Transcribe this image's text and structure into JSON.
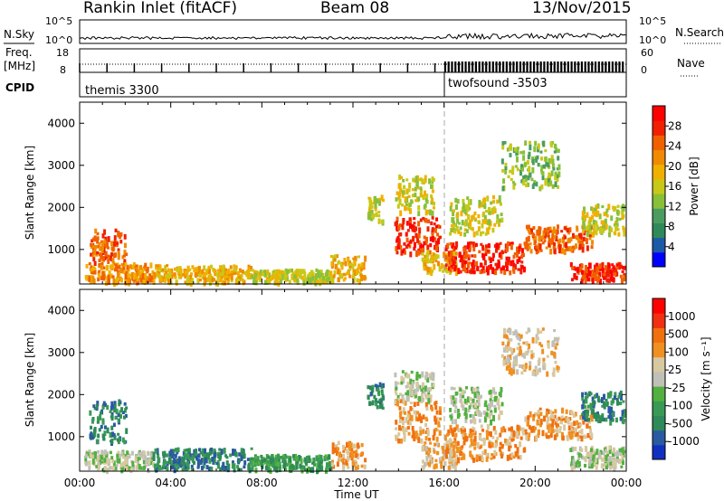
{
  "header": {
    "station": "Rankin Inlet (fitACF)",
    "beam": "Beam 08",
    "date": "13/Nov/2015"
  },
  "strips": {
    "nsky_label": "N.Sky",
    "nsearch_label": "N.Search",
    "noise_ticks": [
      "10^5",
      "10^0"
    ],
    "freq_label": "Freq.",
    "freq_unit": "[MHz]",
    "freq_ticks": [
      "18",
      "8"
    ],
    "nave_label": "Nave",
    "nave_ticks": [
      "60",
      "0"
    ],
    "cpid_label": "CPID",
    "cpid_segments": [
      {
        "name": "themis 3300",
        "start_hour": 0,
        "end_hour": 16
      },
      {
        "name": "twofsound -3503",
        "start_hour": 16,
        "end_hour": 24
      }
    ]
  },
  "chart_data": [
    {
      "type": "heatmap",
      "name": "power",
      "ylabel": "Slant Range [km]",
      "x_unit": "hours UT",
      "xlim": [
        0,
        24
      ],
      "ylim": [
        180,
        4500
      ],
      "yticks": [
        1000,
        2000,
        3000,
        4000
      ],
      "colorbar": {
        "label": "Power [dB]",
        "ticks": [
          "4",
          "8",
          "12",
          "16",
          "20",
          "24",
          "28"
        ],
        "colors": [
          "#0000ff",
          "#1d5aa8",
          "#2e8a58",
          "#4a9d5e",
          "#88c03a",
          "#c8c818",
          "#f0b000",
          "#f08a00",
          "#f06000",
          "#f02000",
          "#ff0000"
        ]
      },
      "scatter_regions": [
        {
          "t0": 0.4,
          "t1": 2.0,
          "r0": 700,
          "r1": 1500,
          "level": 8
        },
        {
          "t0": 0.2,
          "t1": 3.2,
          "r0": 250,
          "r1": 700,
          "level": 7
        },
        {
          "t0": 3.2,
          "t1": 7.5,
          "r0": 250,
          "r1": 650,
          "level": 6
        },
        {
          "t0": 7.5,
          "t1": 11.0,
          "r0": 250,
          "r1": 550,
          "level": 5
        },
        {
          "t0": 11.0,
          "t1": 12.5,
          "r0": 300,
          "r1": 900,
          "level": 6
        },
        {
          "t0": 12.6,
          "t1": 13.3,
          "r0": 1700,
          "r1": 2300,
          "level": 5
        },
        {
          "t0": 13.8,
          "t1": 15.8,
          "r0": 950,
          "r1": 1800,
          "level": 9
        },
        {
          "t0": 13.8,
          "t1": 15.5,
          "r0": 1900,
          "r1": 2800,
          "level": 5
        },
        {
          "t0": 15.0,
          "t1": 16.5,
          "r0": 500,
          "r1": 1000,
          "level": 6
        },
        {
          "t0": 16.0,
          "t1": 19.5,
          "r0": 500,
          "r1": 1200,
          "level": 9
        },
        {
          "t0": 16.2,
          "t1": 18.5,
          "r0": 1400,
          "r1": 2300,
          "level": 5
        },
        {
          "t0": 19.5,
          "t1": 22.5,
          "r0": 1000,
          "r1": 1600,
          "level": 8
        },
        {
          "t0": 21.5,
          "t1": 24.0,
          "r0": 300,
          "r1": 700,
          "level": 9
        },
        {
          "t0": 18.5,
          "t1": 21.0,
          "r0": 2500,
          "r1": 3600,
          "level": 4
        },
        {
          "t0": 22.0,
          "t1": 24.0,
          "r0": 1400,
          "r1": 2100,
          "level": 5
        }
      ]
    },
    {
      "type": "heatmap",
      "name": "velocity",
      "xlabel": "Time UT",
      "ylabel": "Slant Range [km]",
      "x_unit": "hours UT",
      "xlim": [
        0,
        24
      ],
      "ylim": [
        180,
        4500
      ],
      "yticks": [
        1000,
        2000,
        3000,
        4000
      ],
      "xticks": [
        "00:00",
        "04:00",
        "08:00",
        "12:00",
        "16:00",
        "20:00",
        "00:00"
      ],
      "colorbar": {
        "label": "Velocity [m s⁻¹]",
        "ticks": [
          "1000",
          "500",
          "100",
          "25",
          "-25",
          "-100",
          "-500",
          "-1000"
        ],
        "colors": [
          "#1230c0",
          "#2a5aa0",
          "#2e8a58",
          "#3a9a55",
          "#52b040",
          "#c0c0b8",
          "#d8c8a0",
          "#f09020",
          "#f07010",
          "#f03010",
          "#ff0000"
        ]
      },
      "scatter_regions": [
        {
          "t0": 0.4,
          "t1": 2.0,
          "r0": 900,
          "r1": 1900,
          "level": 2
        },
        {
          "t0": 0.2,
          "t1": 3.2,
          "r0": 250,
          "r1": 700,
          "level": 5
        },
        {
          "t0": 3.2,
          "t1": 7.5,
          "r0": 250,
          "r1": 750,
          "level": 2
        },
        {
          "t0": 7.5,
          "t1": 11.0,
          "r0": 250,
          "r1": 600,
          "level": 3
        },
        {
          "t0": 11.0,
          "t1": 12.5,
          "r0": 300,
          "r1": 900,
          "level": 7
        },
        {
          "t0": 12.6,
          "t1": 13.3,
          "r0": 1700,
          "r1": 2300,
          "level": 2
        },
        {
          "t0": 13.8,
          "t1": 15.8,
          "r0": 950,
          "r1": 1900,
          "level": 7
        },
        {
          "t0": 13.8,
          "t1": 15.5,
          "r0": 1900,
          "r1": 2600,
          "level": 5
        },
        {
          "t0": 15.0,
          "t1": 16.5,
          "r0": 300,
          "r1": 900,
          "level": 6
        },
        {
          "t0": 16.0,
          "t1": 19.5,
          "r0": 500,
          "r1": 1300,
          "level": 7
        },
        {
          "t0": 16.2,
          "t1": 18.5,
          "r0": 1400,
          "r1": 2200,
          "level": 5
        },
        {
          "t0": 19.5,
          "t1": 22.5,
          "r0": 1000,
          "r1": 1700,
          "level": 7
        },
        {
          "t0": 21.5,
          "t1": 24.0,
          "r0": 300,
          "r1": 800,
          "level": 5
        },
        {
          "t0": 18.5,
          "t1": 21.0,
          "r0": 2500,
          "r1": 3600,
          "level": 6
        },
        {
          "t0": 22.0,
          "t1": 24.0,
          "r0": 1400,
          "r1": 2100,
          "level": 2
        }
      ]
    }
  ]
}
